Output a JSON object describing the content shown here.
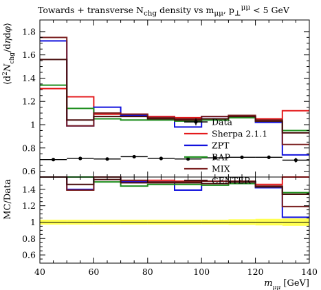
{
  "chart_data": {
    "type": "line",
    "title_html": "Towards + transverse N<sub>chg</sub> density vs m<sub>μμ</sub>, p<sub>⊥</sub><sup>μμ</sup> &lt; 5 GeV",
    "ylabel": "⟨d²N_chg/dηdφ⟩",
    "ylabel_ratio": "MC/Data",
    "xlabel": "m_μμ [GeV]",
    "x_edges": [
      40,
      50,
      60,
      70,
      80,
      90,
      100,
      110,
      120,
      130,
      140
    ],
    "xlim": [
      40,
      140
    ],
    "ylim": [
      0.55,
      1.9
    ],
    "ylim_ratio": [
      0.5,
      1.55
    ],
    "x_ticks": [
      40,
      60,
      80,
      100,
      120,
      140
    ],
    "y_ticks": [
      0.6,
      0.8,
      1.0,
      1.2,
      1.4,
      1.6,
      1.8
    ],
    "y_tick_labels": [
      "0.6",
      "0.8",
      "1",
      "1.2",
      "1.4",
      "1.6",
      "1.8"
    ],
    "ratio_ticks": [
      0.6,
      0.8,
      1.0,
      1.2,
      1.4
    ],
    "ratio_tick_labels": [
      "0.6",
      "0.8",
      "1",
      "1.2",
      "1.4"
    ],
    "data": {
      "name": "Data",
      "x": [
        45,
        55,
        65,
        75,
        85,
        95,
        105,
        115,
        125,
        135
      ],
      "y": [
        0.7,
        0.71,
        0.705,
        0.725,
        0.71,
        0.705,
        0.715,
        0.72,
        0.72,
        0.695
      ],
      "yerr": [
        0.01,
        0.01,
        0.01,
        0.012,
        0.01,
        0.01,
        0.01,
        0.012,
        0.015,
        0.02
      ],
      "ratio_band": [
        0.03,
        0.03,
        0.03,
        0.03,
        0.03,
        0.03,
        0.03,
        0.035,
        0.04,
        0.045
      ]
    },
    "series": [
      {
        "name": "Sherpa 2.1.1",
        "color": "#e41a1c",
        "values": [
          1.31,
          1.24,
          1.09,
          1.09,
          1.07,
          1.06,
          1.07,
          1.07,
          1.05,
          1.12
        ],
        "ratio": [
          1.87,
          1.75,
          1.55,
          1.5,
          1.51,
          1.5,
          1.5,
          1.49,
          1.46,
          1.61
        ]
      },
      {
        "name": "ZPT",
        "color": "#1111dd",
        "values": [
          1.72,
          0.99,
          1.15,
          1.08,
          1.06,
          0.98,
          1.07,
          1.07,
          1.02,
          0.74
        ],
        "ratio": [
          2.45,
          1.4,
          1.63,
          1.49,
          1.49,
          1.39,
          1.5,
          1.49,
          1.42,
          1.06
        ]
      },
      {
        "name": "RAP",
        "color": "#1f8f1f",
        "values": [
          1.34,
          1.14,
          1.05,
          1.04,
          1.04,
          1.03,
          1.04,
          1.06,
          1.03,
          0.95
        ],
        "ratio": [
          1.91,
          1.61,
          1.49,
          1.44,
          1.46,
          1.46,
          1.45,
          1.47,
          1.43,
          1.36
        ]
      },
      {
        "name": "MIX",
        "color": "#7a1f1f",
        "values": [
          1.75,
          0.99,
          1.1,
          1.09,
          1.06,
          1.05,
          1.07,
          1.08,
          1.04,
          0.83
        ],
        "ratio": [
          2.5,
          1.39,
          1.56,
          1.51,
          1.49,
          1.49,
          1.5,
          1.5,
          1.44,
          1.19
        ]
      },
      {
        "name": "CENTER",
        "color": "#4a0f0f",
        "values": [
          1.56,
          1.04,
          1.07,
          1.07,
          1.05,
          1.04,
          1.05,
          1.07,
          1.03,
          0.93
        ],
        "ratio": [
          2.23,
          1.46,
          1.52,
          1.48,
          1.48,
          1.48,
          1.47,
          1.49,
          1.43,
          1.34
        ]
      }
    ],
    "legend": {
      "entries": [
        "Data",
        "Sherpa 2.1.1",
        "ZPT",
        "RAP",
        "MIX",
        "CENTER"
      ],
      "placement": "center-right"
    },
    "colors": {
      "data": "#000000",
      "band": "#ffff33",
      "ratio_line": "#000000"
    }
  }
}
